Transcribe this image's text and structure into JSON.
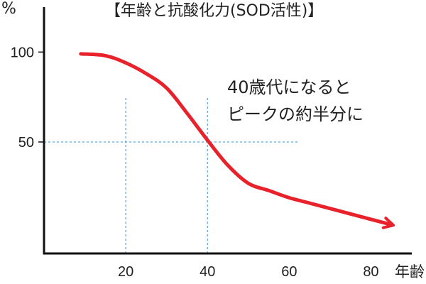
{
  "chart_data": {
    "type": "line",
    "title": "【年齢と抗酸化力(SOD活性)】",
    "xlabel": "年齢",
    "ylabel": "%",
    "x_ticks": [
      20,
      40,
      60,
      80
    ],
    "y_ticks": [
      100,
      50
    ],
    "xlim": [
      0,
      90
    ],
    "ylim": [
      -12,
      125
    ],
    "grid": false,
    "reference_lines": {
      "vertical": [
        20,
        40
      ],
      "horizontal": [
        50
      ]
    },
    "series": [
      {
        "x": [
          9,
          15,
          20,
          25,
          30,
          35,
          40,
          45,
          50,
          55,
          60,
          65,
          70,
          75,
          80,
          85
        ],
        "y": [
          99,
          98,
          94,
          88,
          80,
          66,
          51,
          37,
          27,
          23,
          19,
          16,
          13,
          10,
          7,
          4
        ],
        "color": "#e8212b"
      }
    ],
    "annotation": [
      "40歳代になると",
      "ピークの約半分に"
    ]
  }
}
